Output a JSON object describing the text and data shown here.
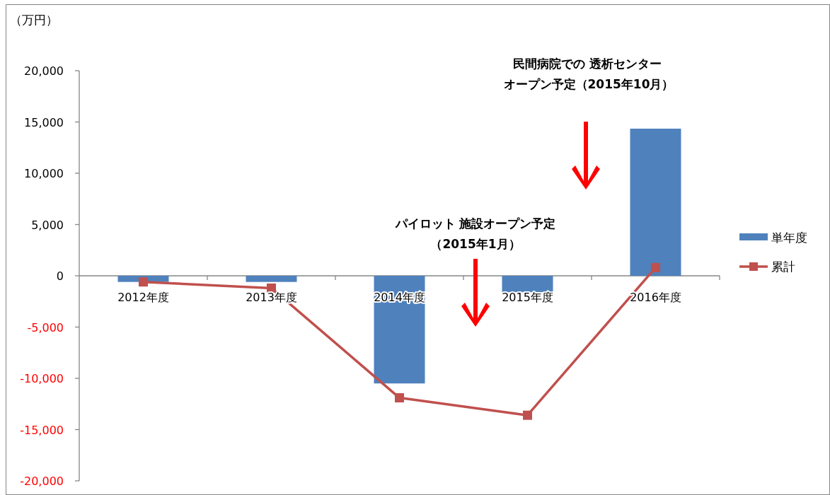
{
  "chart_data": {
    "type": "bar",
    "ylabel": "（万円）",
    "categories": [
      "2012年度",
      "2013年度",
      "2014年度",
      "2015年度",
      "2016年度"
    ],
    "series": [
      {
        "name": "単年度",
        "type": "bar",
        "color": "#4f81bd",
        "values": [
          -600,
          -600,
          -10500,
          -1600,
          14350
        ]
      },
      {
        "name": "累計",
        "type": "line",
        "color": "#c0504d",
        "values": [
          -600,
          -1200,
          -11900,
          -13600,
          800
        ]
      }
    ],
    "ylim": [
      -20000,
      20000
    ],
    "yticks": [
      {
        "value": -20000,
        "label": "-20,000"
      },
      {
        "value": -15000,
        "label": "-15,000"
      },
      {
        "value": -10000,
        "label": "-10,000"
      },
      {
        "value": -5000,
        "label": "-5,000"
      },
      0,
      {
        "value": 5000,
        "label": "5,000"
      },
      {
        "value": 10000,
        "label": "10,000"
      },
      {
        "value": 15000,
        "label": "15,000"
      },
      {
        "value": 20000,
        "label": "20,000"
      }
    ],
    "marker": "square",
    "legend": "right",
    "annotations": [
      "民間病院での 透析センター",
      "オープン予定（2015年10月）",
      "パイロット 施設オープン予定",
      "（2015年1月）"
    ]
  }
}
